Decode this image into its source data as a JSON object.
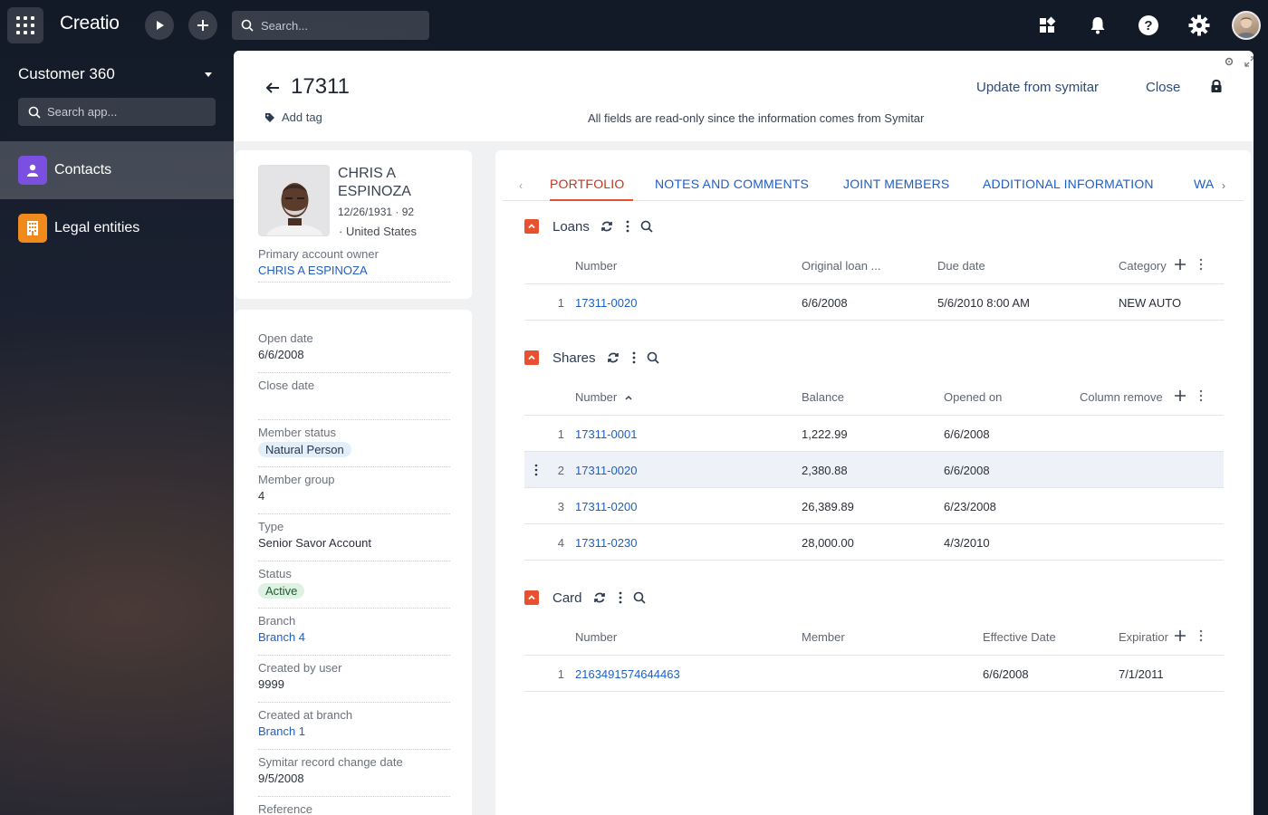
{
  "topbar": {
    "logo": "Creatio",
    "search_placeholder": "Search..."
  },
  "sidebar": {
    "workspace": "Customer 360",
    "search_placeholder": "Search app...",
    "items": [
      {
        "label": "Contacts",
        "icon": "person-icon",
        "color": "#7b4fe0",
        "active": true
      },
      {
        "label": "Legal entities",
        "icon": "building-icon",
        "color": "#f08a1c",
        "active": false
      }
    ]
  },
  "header": {
    "title": "17311",
    "add_tag": "Add tag",
    "update_label": "Update from symitar",
    "close_label": "Close",
    "readonly_message": "All fields are read-only since the information comes from Symitar"
  },
  "profile": {
    "name": "CHRIS A ESPINOZA",
    "dob": "12/26/1931 · 92",
    "country": "· United States",
    "owner_label": "Primary account owner",
    "owner_value": "CHRIS A ESPINOZA"
  },
  "fields": [
    {
      "label": "Open date",
      "value": "6/6/2008",
      "type": "text"
    },
    {
      "label": "Close date",
      "value": "",
      "type": "text"
    },
    {
      "label": "Member status",
      "value": "Natural Person",
      "type": "chip-blue"
    },
    {
      "label": "Member group",
      "value": "4",
      "type": "text"
    },
    {
      "label": "Type",
      "value": "Senior Savor Account",
      "type": "text"
    },
    {
      "label": "Status",
      "value": "Active",
      "type": "chip-green"
    },
    {
      "label": "Branch",
      "value": "Branch 4",
      "type": "link"
    },
    {
      "label": "Created by user",
      "value": "9999",
      "type": "text"
    },
    {
      "label": "Created at branch",
      "value": "Branch 1",
      "type": "link"
    },
    {
      "label": "Symitar record change date",
      "value": "9/5/2008",
      "type": "text"
    },
    {
      "label": "Reference",
      "value": "",
      "type": "text"
    }
  ],
  "tabs": [
    "PORTFOLIO",
    "NOTES AND COMMENTS",
    "JOINT MEMBERS",
    "ADDITIONAL INFORMATION",
    "WA"
  ],
  "loans": {
    "title": "Loans",
    "columns": [
      "Number",
      "Original loan ...",
      "Due date",
      "Category"
    ],
    "rows": [
      {
        "n": "1",
        "number": "17311-0020",
        "original": "6/6/2008",
        "due": "5/6/2010 8:00 AM",
        "category": "NEW AUTO"
      }
    ]
  },
  "shares": {
    "title": "Shares",
    "columns": [
      "Number",
      "Balance",
      "Opened on",
      "Column remove"
    ],
    "rows": [
      {
        "n": "1",
        "number": "17311-0001",
        "balance": "1,222.99",
        "opened": "6/6/2008"
      },
      {
        "n": "2",
        "number": "17311-0020",
        "balance": "2,380.88",
        "opened": "6/6/2008"
      },
      {
        "n": "3",
        "number": "17311-0200",
        "balance": "26,389.89",
        "opened": "6/23/2008"
      },
      {
        "n": "4",
        "number": "17311-0230",
        "balance": "28,000.00",
        "opened": "4/3/2010"
      }
    ]
  },
  "card": {
    "title": "Card",
    "columns": [
      "Number",
      "Member",
      "Effective Date",
      "Expiratior"
    ],
    "rows": [
      {
        "n": "1",
        "number": "2163491574644463",
        "member": "",
        "effective": "6/6/2008",
        "expiration": "7/1/2011"
      }
    ]
  },
  "colors": {
    "accent": "#e8502f",
    "link": "#1f5fc4",
    "active_tab": "#c4341e"
  }
}
